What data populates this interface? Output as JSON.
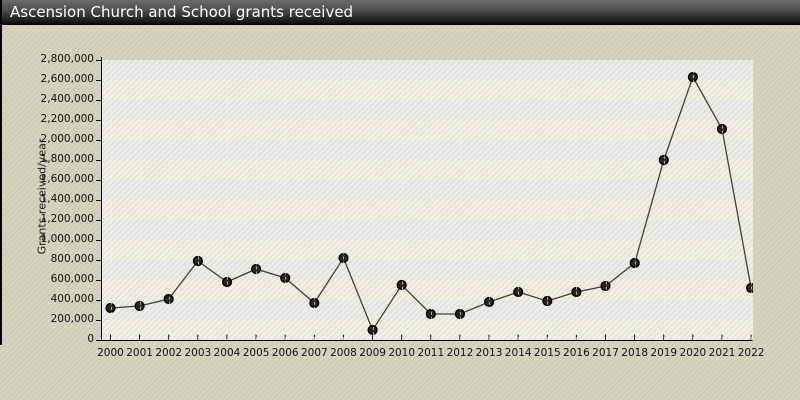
{
  "window": {
    "title": "Ascension Church and School grants received"
  },
  "colors": {
    "outer_background": "#d6d4b9",
    "outer_stripe": "#cbccc1",
    "plot_band_gray": "#e4e5e0",
    "plot_band_cream": "#ebe9d8",
    "titlebar_top": "#6b6b6b",
    "titlebar_bottom": "#000000",
    "title_text": "#ffffff",
    "axis": "#000000",
    "tick_text": "#111111",
    "line": "#46422e",
    "marker_fill": "#2c2817",
    "marker_stroke": "#000000"
  },
  "chart_data": {
    "type": "line",
    "title": "Ascension Church and School grants received",
    "xlabel": "",
    "ylabel": "Grants received/year",
    "legend": "none",
    "grid": "alternating horizontal bands every 200,000 with dashed vertical lines at each year",
    "ylim": [
      0,
      2800000
    ],
    "ytick_interval": 200000,
    "categories": [
      "2000",
      "2001",
      "2002",
      "2003",
      "2004",
      "2005",
      "2006",
      "2007",
      "2008",
      "2009",
      "2010",
      "2011",
      "2012",
      "2013",
      "2014",
      "2015",
      "2016",
      "2017",
      "2018",
      "2019",
      "2020",
      "2021",
      "2022"
    ],
    "series": [
      {
        "name": "Grants received/year",
        "values": [
          320000,
          340000,
          410000,
          790000,
          580000,
          710000,
          620000,
          370000,
          820000,
          100000,
          550000,
          260000,
          260000,
          380000,
          480000,
          390000,
          480000,
          540000,
          770000,
          1800000,
          2630000,
          2110000,
          520000
        ]
      }
    ]
  }
}
